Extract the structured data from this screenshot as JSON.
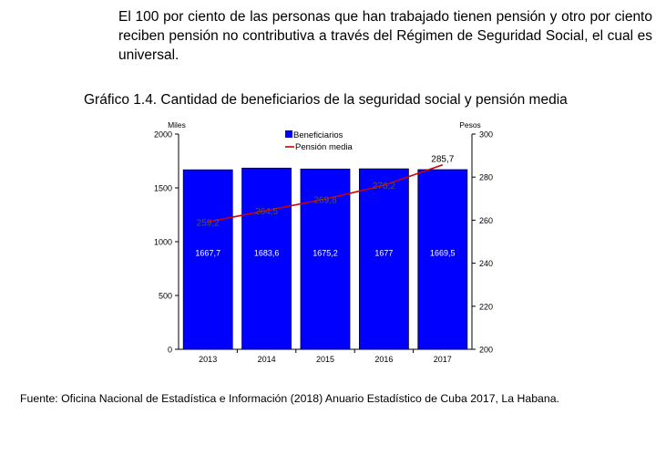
{
  "paragraph": "El 100 por ciento de las personas que han trabajado tienen pensión y otro por ciento reciben pensión no contributiva a través del Régimen de Seguridad Social, el cual es universal.",
  "source": "Fuente: Oficina Nacional de Estadística e Información (2018) Anuario Estadístico de Cuba 2017, La Habana.",
  "colors": {
    "bars": "#0000ff",
    "line": "#cc0000",
    "bar_label": "#ffffff"
  },
  "chart_data": {
    "type": "bar",
    "title": "Gráfico 1.4. Cantidad de beneficiarios de la seguridad social y pensión media",
    "categories": [
      "2013",
      "2014",
      "2015",
      "2016",
      "2017"
    ],
    "series": [
      {
        "name": "Beneficiarios",
        "type": "bar",
        "axis": "left",
        "values": [
          1667.7,
          1683.6,
          1675.2,
          1677,
          1669.5
        ],
        "labels": [
          "1667,7",
          "1683,6",
          "1675,2",
          "1677",
          "1669,5"
        ]
      },
      {
        "name": "Pensión media",
        "type": "line",
        "axis": "right",
        "values": [
          259.2,
          264.5,
          269.8,
          276.2,
          285.7
        ],
        "labels": [
          "259,2",
          "264,5",
          "269,8",
          "276,2",
          "285,7"
        ]
      }
    ],
    "ylabel_left": "Miles",
    "ylabel_right": "Pesos",
    "ylim_left": [
      0,
      2000
    ],
    "ylim_right": [
      200,
      300
    ],
    "yticks_left": [
      0,
      500,
      1000,
      1500,
      2000
    ],
    "yticks_right": [
      200,
      220,
      240,
      260,
      280,
      300
    ],
    "grid": false,
    "legend": "top-center"
  }
}
